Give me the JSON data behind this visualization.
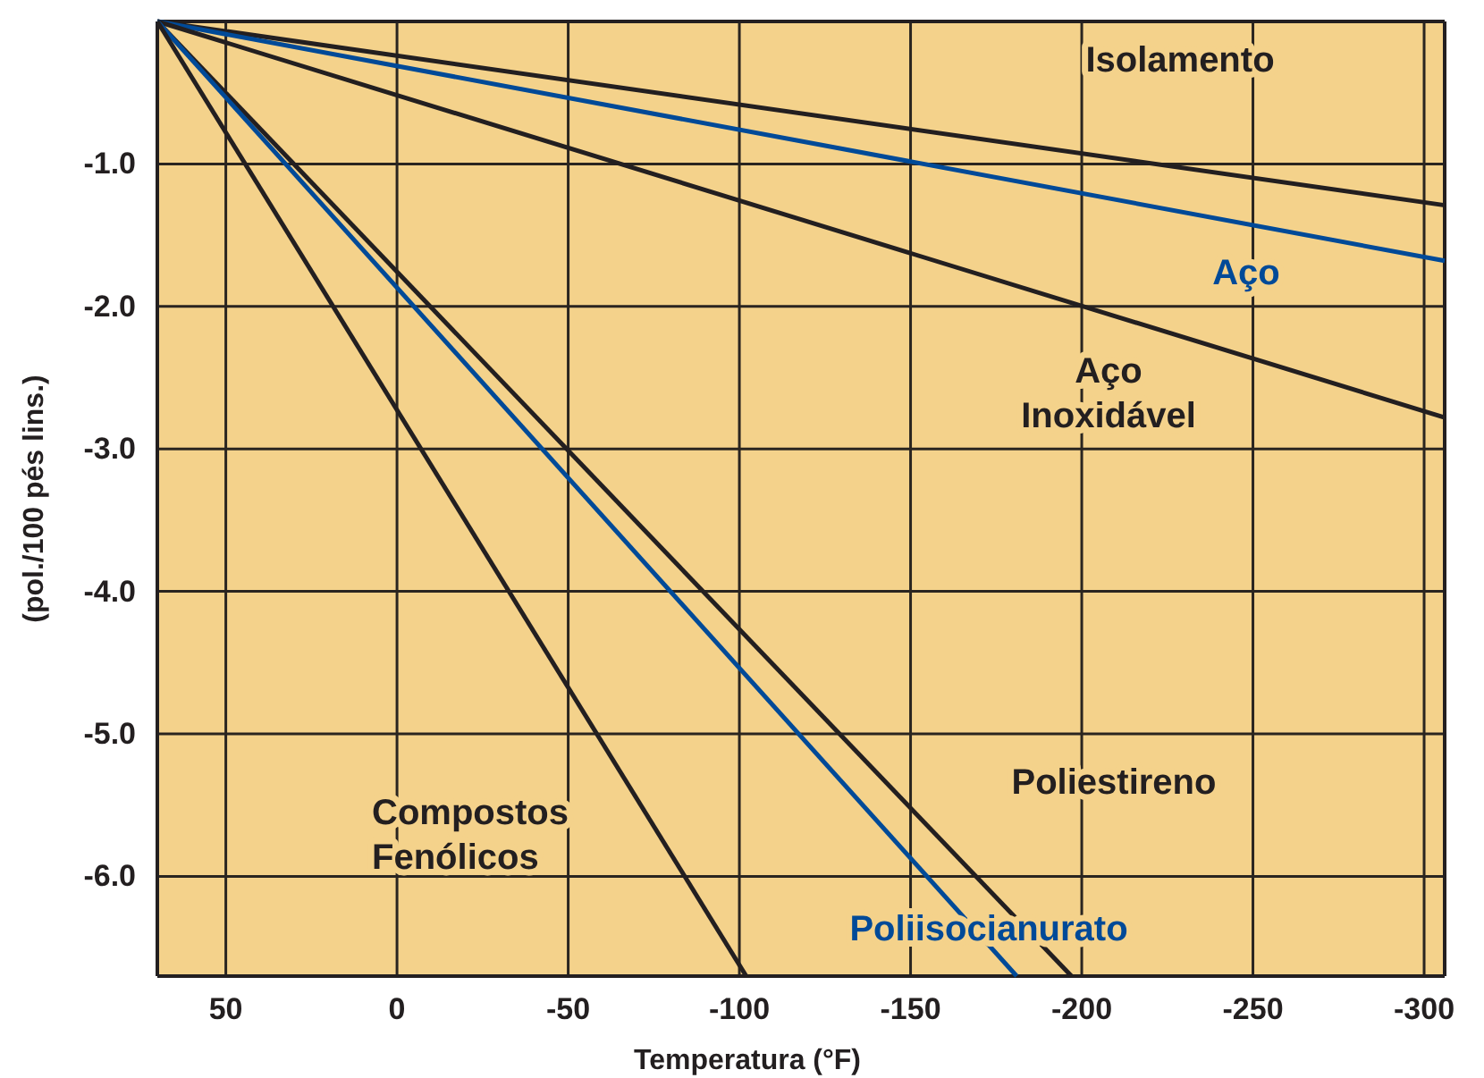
{
  "chart_data": {
    "type": "line",
    "xlabel": "Temperatura (°F)",
    "ylabel": "(pol./100 pés lins.)",
    "xlim": [
      70,
      -306
    ],
    "ylim": [
      -6.7,
      0
    ],
    "xticks": [
      50,
      0,
      -50,
      -100,
      -150,
      -200,
      -250,
      -300
    ],
    "yticks": [
      {
        "value": -1,
        "label": "-1.0"
      },
      {
        "value": -2,
        "label": "-2.0"
      },
      {
        "value": -3,
        "label": "-3.0"
      },
      {
        "value": -4,
        "label": "-4.0"
      },
      {
        "value": -5,
        "label": "-5.0"
      },
      {
        "value": -6,
        "label": "-6.0"
      }
    ],
    "grid": true,
    "marker": "none",
    "line_style": "solid",
    "series": [
      {
        "name": "Isolamento",
        "color": "#231f20",
        "x": [
          70,
          -306
        ],
        "values": [
          0,
          -1.29
        ]
      },
      {
        "name": "Aço",
        "color": "#004a98",
        "x": [
          70,
          -306
        ],
        "values": [
          0,
          -1.68
        ]
      },
      {
        "name": "Aço Inoxidável",
        "color": "#231f20",
        "x": [
          70,
          -306
        ],
        "values": [
          0,
          -2.78
        ]
      },
      {
        "name": "Poliestireno",
        "color": "#231f20",
        "x": [
          70,
          -197
        ],
        "values": [
          0,
          -6.7
        ]
      },
      {
        "name": "Poliisocianurato",
        "color": "#004a98",
        "x": [
          70,
          -181
        ],
        "values": [
          0,
          -6.7
        ]
      },
      {
        "name": "Compostos Fenólicos",
        "color": "#231f20",
        "x": [
          70,
          -102
        ],
        "values": [
          0,
          -6.7
        ]
      }
    ]
  }
}
